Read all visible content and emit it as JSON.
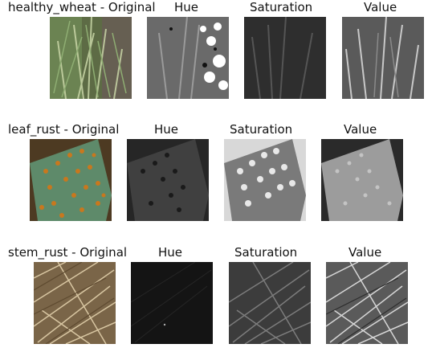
{
  "rows": [
    {
      "titles": [
        "healthy_wheat - Original",
        "Hue",
        "Saturation",
        "Value"
      ],
      "kind": "healthy"
    },
    {
      "titles": [
        "leaf_rust - Original",
        "Hue",
        "Saturation",
        "Value"
      ],
      "kind": "leaf"
    },
    {
      "titles": [
        "stem_rust - Original",
        "Hue",
        "Saturation",
        "Value"
      ],
      "kind": "stem"
    }
  ],
  "colors": {
    "background": "#ffffff",
    "wheat_green": "#6f8a55",
    "leaf_green": "#5e8a6a",
    "rust_orange": "#c8781e",
    "straw": "#b59a6e"
  }
}
